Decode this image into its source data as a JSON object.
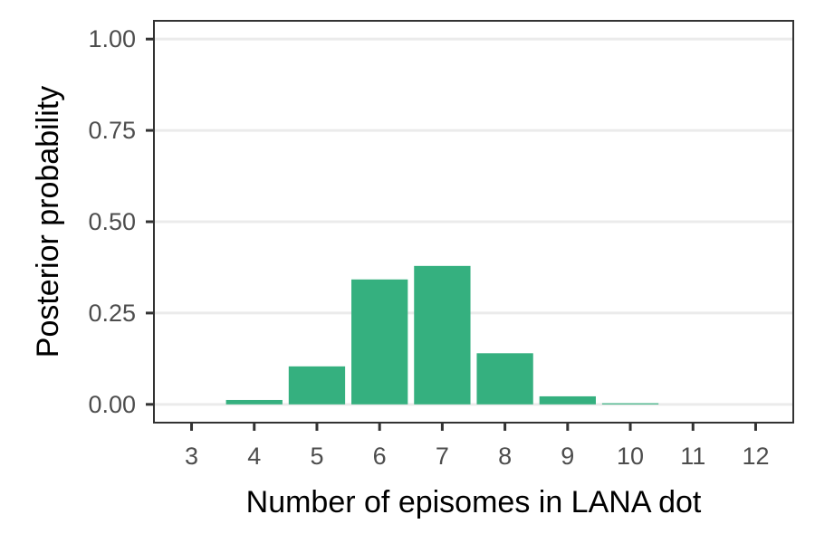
{
  "chart_data": {
    "type": "bar",
    "title": "",
    "xlabel": "Number of episomes in LANA dot",
    "ylabel": "Posterior probability",
    "categories": [
      "3",
      "4",
      "5",
      "6",
      "7",
      "8",
      "9",
      "10",
      "11",
      "12"
    ],
    "values": [
      0.0,
      0.012,
      0.104,
      0.342,
      0.379,
      0.14,
      0.022,
      0.003,
      0.0,
      0.0
    ],
    "ylim": [
      -0.05,
      1.05
    ],
    "yticks": [
      0,
      0.25,
      0.5,
      0.75,
      1
    ],
    "ytick_labels": [
      "0.00",
      "0.25",
      "0.50",
      "0.75",
      "1.00"
    ],
    "grid": "horizontal",
    "bar_color": "#35b07f",
    "grid_color": "#ebebeb",
    "axis_color": "#333333"
  }
}
